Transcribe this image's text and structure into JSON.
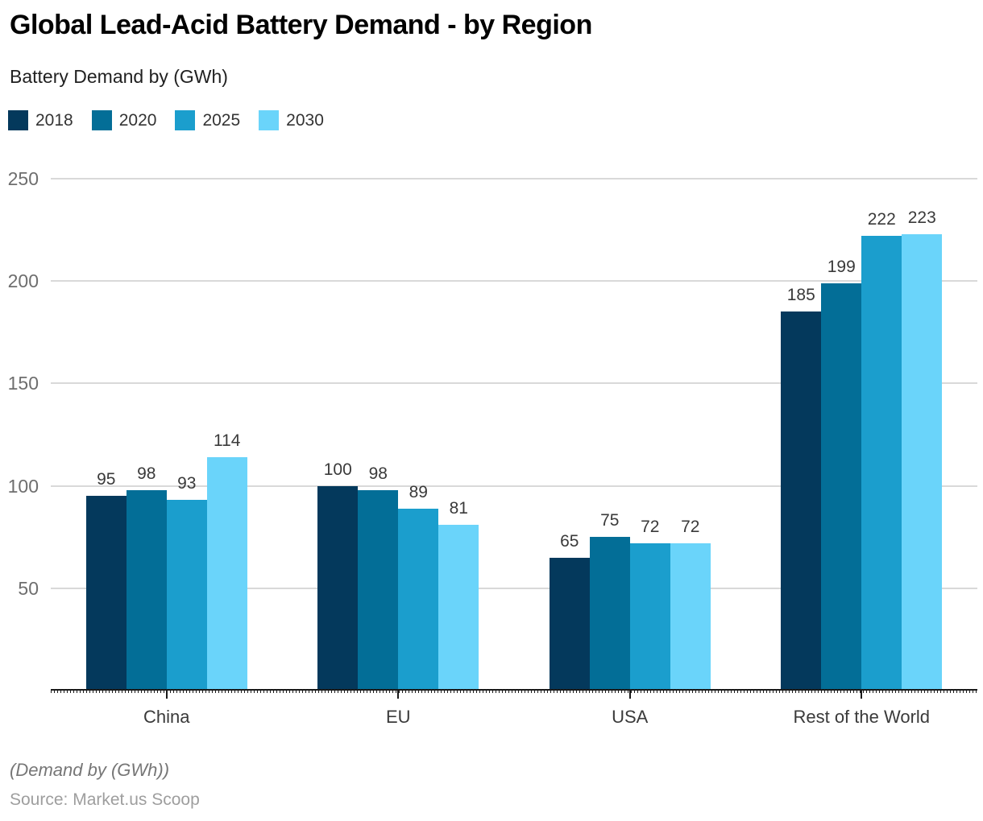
{
  "header": {
    "title": "Global Lead-Acid Battery Demand - by Region",
    "subtitle": "Battery Demand by (GWh)"
  },
  "footer": {
    "note": "(Demand by (GWh))",
    "source": "Source: Market.us Scoop"
  },
  "colors": {
    "background": "#ffffff",
    "grid": "#d9d9d9",
    "axis": "#1a1a1a",
    "ytick_text": "#6e6e6e",
    "value_text": "#3a3a3a",
    "category_text": "#3a3a3a",
    "series_2018": "#04395c",
    "series_2020": "#036e97",
    "series_2025": "#1b9ecd",
    "series_2030": "#6ad4fa"
  },
  "chart_data": {
    "type": "bar",
    "title": "Global Lead-Acid Battery Demand - by Region",
    "subtitle": "Battery Demand by (GWh)",
    "categories": [
      "China",
      "EU",
      "USA",
      "Rest of the World"
    ],
    "series": [
      {
        "name": "2018",
        "color": "#04395c",
        "values": [
          95,
          100,
          65,
          185
        ]
      },
      {
        "name": "2020",
        "color": "#036e97",
        "values": [
          98,
          98,
          75,
          199
        ]
      },
      {
        "name": "2025",
        "color": "#1b9ecd",
        "values": [
          93,
          89,
          72,
          222
        ]
      },
      {
        "name": "2030",
        "color": "#6ad4fa",
        "values": [
          114,
          81,
          72,
          223
        ]
      }
    ],
    "xlabel": "",
    "ylabel": "",
    "ylim": [
      0,
      250
    ],
    "yticks": [
      50,
      100,
      150,
      200,
      250
    ],
    "grid": true,
    "value_labels": true,
    "legend_position": "top-left"
  }
}
